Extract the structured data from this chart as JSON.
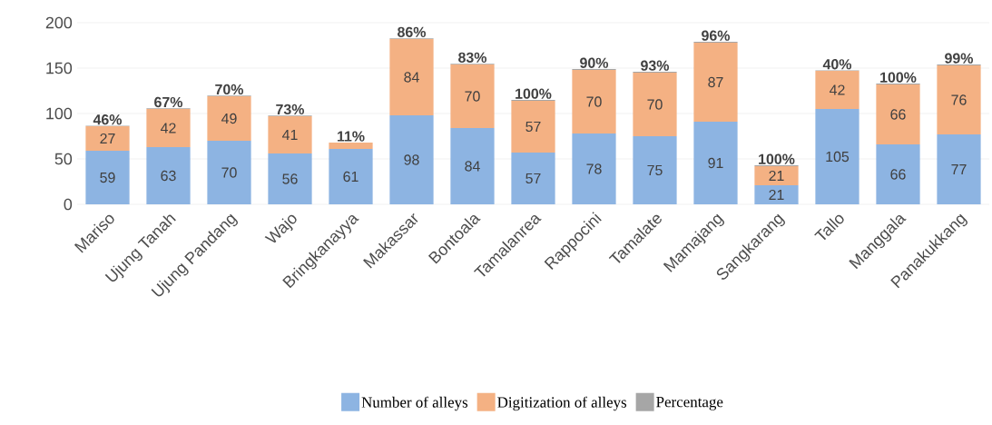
{
  "chart_data": {
    "type": "bar",
    "stacked": true,
    "categories": [
      "Mariso",
      "Ujung Tanah",
      "Ujung Pandang",
      "Wajo",
      "Bringkanayya",
      "Makassar",
      "Bontoala",
      "Tamalanrea",
      "Rappocini",
      "Tamalate",
      "Mamajang",
      "Sangkarang",
      "Tallo",
      "Manggala",
      "Panakukkang"
    ],
    "series": [
      {
        "name": "Number of alleys",
        "color": "#8db4e2",
        "values": [
          59,
          63,
          70,
          56,
          61,
          98,
          84,
          57,
          78,
          75,
          91,
          21,
          105,
          66,
          77
        ],
        "value_labels": [
          "59",
          "63",
          "70",
          "56",
          "61",
          "98",
          "84",
          "57",
          "78",
          "75",
          "91",
          "21",
          "105",
          "66",
          "77"
        ]
      },
      {
        "name": "Digitization of alleys",
        "color": "#f4b183",
        "values": [
          27,
          42,
          49,
          41,
          7,
          84,
          70,
          57,
          70,
          70,
          87,
          21,
          42,
          66,
          76
        ],
        "value_labels": [
          "27",
          "42",
          "49",
          "41",
          null,
          "84",
          "70",
          "57",
          "70",
          "70",
          "87",
          "21",
          "42",
          "66",
          "76"
        ]
      },
      {
        "name": "Percentage",
        "color": "#a6a6a6",
        "values": [
          0.46,
          0.67,
          0.7,
          0.73,
          0.11,
          0.86,
          0.83,
          1.0,
          0.9,
          0.93,
          0.96,
          1.0,
          0.4,
          1.0,
          0.99
        ],
        "value_labels": [
          "46%",
          "67%",
          "70%",
          "73%",
          "11%",
          "86%",
          "83%",
          "100%",
          "90%",
          "93%",
          "96%",
          "100%",
          "40%",
          "100%",
          "99%"
        ]
      }
    ],
    "ylim": [
      0,
      200
    ],
    "yticks": [
      0,
      50,
      100,
      150,
      200
    ],
    "grid": "y",
    "legend": "bottom"
  }
}
